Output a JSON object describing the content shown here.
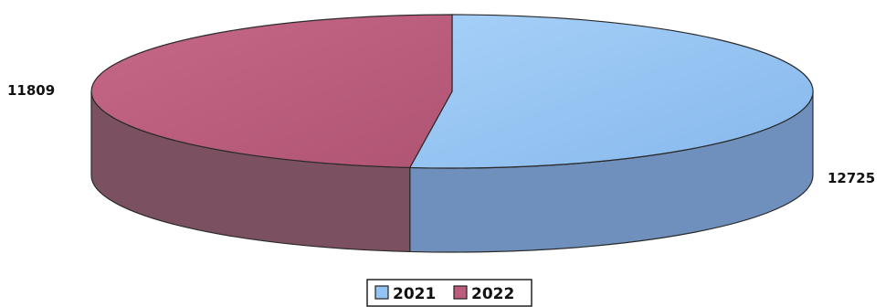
{
  "chart_data": {
    "type": "pie",
    "style": "3d",
    "categories": [
      "2021",
      "2022"
    ],
    "values": [
      12725,
      11809
    ],
    "colors": {
      "2021": {
        "top": "#94c4f4",
        "side": "#6f8fbc"
      },
      "2022": {
        "top": "#bb5c7c",
        "side": "#7b5060"
      }
    },
    "data_labels": [
      "12725",
      "11809"
    ],
    "legend": {
      "position": "bottom",
      "entries": [
        "2021",
        "2022"
      ]
    }
  }
}
